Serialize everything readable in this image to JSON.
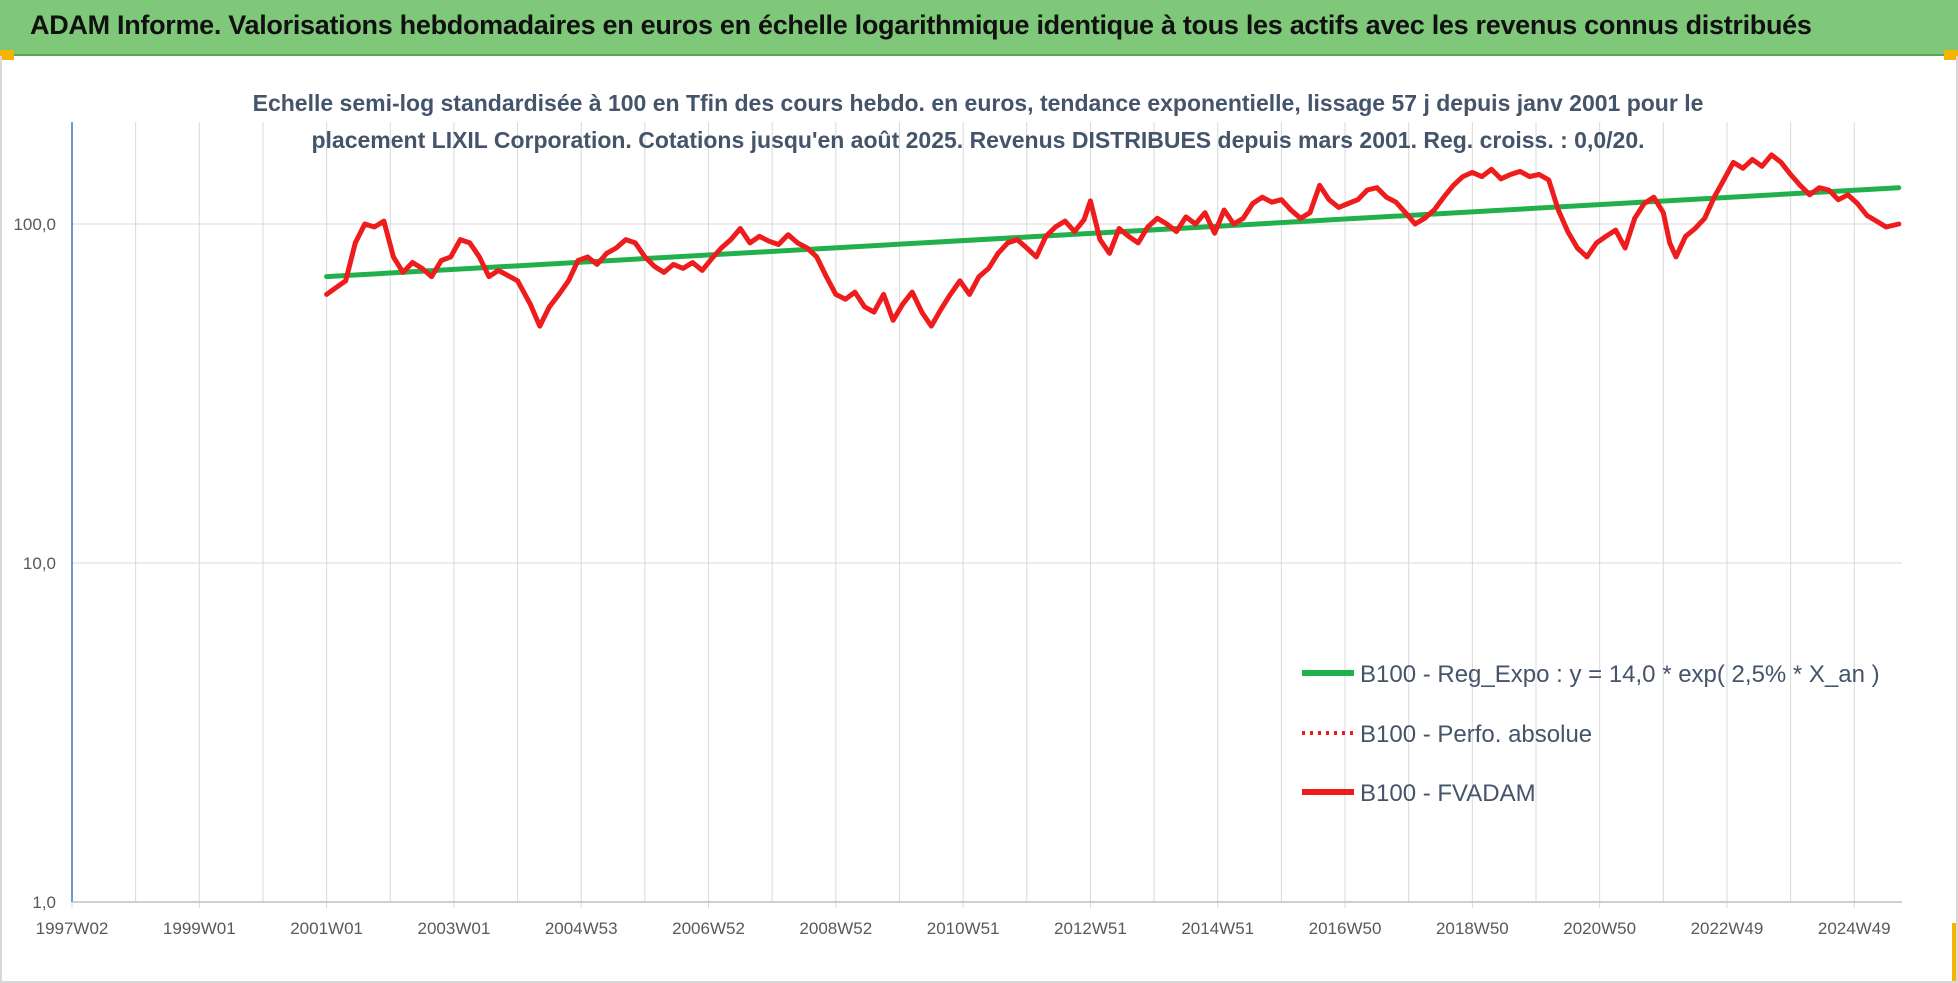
{
  "header": {
    "title": "ADAM Informe. Valorisations hebdomadaires en euros en échelle logarithmique identique à tous les actifs avec les revenus connus distribués"
  },
  "colors": {
    "banner": "#7fc87a",
    "accent": "#f4b400",
    "trend": "#21b04b",
    "fvadam": "#ee1c1c",
    "perfo": "#ee1c1c",
    "grid": "#d9d9d9",
    "axis": "#4472c4"
  },
  "chart_data": {
    "type": "line",
    "title": "",
    "subtitle_lines": [
      "Echelle semi-log standardisée à 100 en Tfin des cours hebdo. en euros, tendance exponentielle, lissage 57 j depuis janv 2001 pour le",
      "placement LIXIL Corporation. Cotations jusqu'en août 2025. Revenus DISTRIBUES depuis mars 2001. Reg. croiss. : 0,0/20."
    ],
    "y_scale": "log",
    "ylim": [
      1,
      200
    ],
    "y_ticks": [
      {
        "value": 1,
        "label": "1,0"
      },
      {
        "value": 10,
        "label": "10,0"
      },
      {
        "value": 100,
        "label": "100,0"
      }
    ],
    "xlim": [
      1997.0,
      2025.75
    ],
    "x_ticks": [
      {
        "value": 1997.0,
        "label": "1997W02"
      },
      {
        "value": 1999.0,
        "label": "1999W01"
      },
      {
        "value": 2001.0,
        "label": "2001W01"
      },
      {
        "value": 2003.0,
        "label": "2003W01"
      },
      {
        "value": 2005.0,
        "label": "2004W53"
      },
      {
        "value": 2007.0,
        "label": "2006W52"
      },
      {
        "value": 2009.0,
        "label": "2008W52"
      },
      {
        "value": 2011.0,
        "label": "2010W51"
      },
      {
        "value": 2013.0,
        "label": "2012W51"
      },
      {
        "value": 2015.0,
        "label": "2014W51"
      },
      {
        "value": 2017.0,
        "label": "2016W50"
      },
      {
        "value": 2019.0,
        "label": "2018W50"
      },
      {
        "value": 2021.0,
        "label": "2020W50"
      },
      {
        "value": 2023.0,
        "label": "2022W49"
      },
      {
        "value": 2025.0,
        "label": "2024W49"
      }
    ],
    "grid": "vertical and horizontal",
    "legend_position": "bottom-right",
    "series": [
      {
        "name": "B100 - Reg_Expo : y = 14,0 * exp( 2,5% *  X_an )",
        "style": "solid",
        "color": "#21b04b",
        "points": [
          [
            2001.0,
            70.0
          ],
          [
            2025.7,
            128.0
          ]
        ]
      },
      {
        "name": "B100 - Perfo. absolue",
        "style": "dotted",
        "color": "#ee1c1c",
        "points": []
      },
      {
        "name": "B100 - FVADAM",
        "style": "solid",
        "color": "#ee1c1c",
        "points": [
          [
            2001.0,
            62
          ],
          [
            2001.15,
            65
          ],
          [
            2001.3,
            68
          ],
          [
            2001.45,
            88
          ],
          [
            2001.6,
            100
          ],
          [
            2001.75,
            98
          ],
          [
            2001.9,
            102
          ],
          [
            2002.05,
            80
          ],
          [
            2002.2,
            72
          ],
          [
            2002.35,
            77
          ],
          [
            2002.5,
            74
          ],
          [
            2002.65,
            70
          ],
          [
            2002.8,
            78
          ],
          [
            2002.95,
            80
          ],
          [
            2003.1,
            90
          ],
          [
            2003.25,
            88
          ],
          [
            2003.4,
            80
          ],
          [
            2003.55,
            70
          ],
          [
            2003.7,
            73
          ],
          [
            2004.0,
            68
          ],
          [
            2004.2,
            58
          ],
          [
            2004.35,
            50
          ],
          [
            2004.5,
            57
          ],
          [
            2004.65,
            62
          ],
          [
            2004.8,
            68
          ],
          [
            2004.95,
            78
          ],
          [
            2005.1,
            80
          ],
          [
            2005.25,
            76
          ],
          [
            2005.4,
            82
          ],
          [
            2005.55,
            85
          ],
          [
            2005.7,
            90
          ],
          [
            2005.85,
            88
          ],
          [
            2006.0,
            80
          ],
          [
            2006.15,
            75
          ],
          [
            2006.3,
            72
          ],
          [
            2006.45,
            76
          ],
          [
            2006.6,
            74
          ],
          [
            2006.75,
            77
          ],
          [
            2006.9,
            73
          ],
          [
            2007.05,
            79
          ],
          [
            2007.2,
            85
          ],
          [
            2007.35,
            90
          ],
          [
            2007.5,
            97
          ],
          [
            2007.65,
            88
          ],
          [
            2007.8,
            92
          ],
          [
            2007.95,
            89
          ],
          [
            2008.1,
            87
          ],
          [
            2008.25,
            93
          ],
          [
            2008.4,
            88
          ],
          [
            2008.55,
            85
          ],
          [
            2008.7,
            80
          ],
          [
            2008.85,
            70
          ],
          [
            2009.0,
            62
          ],
          [
            2009.15,
            60
          ],
          [
            2009.3,
            63
          ],
          [
            2009.45,
            57
          ],
          [
            2009.6,
            55
          ],
          [
            2009.75,
            62
          ],
          [
            2009.9,
            52
          ],
          [
            2010.05,
            58
          ],
          [
            2010.2,
            63
          ],
          [
            2010.35,
            55
          ],
          [
            2010.5,
            50
          ],
          [
            2010.65,
            56
          ],
          [
            2010.8,
            62
          ],
          [
            2010.95,
            68
          ],
          [
            2011.1,
            62
          ],
          [
            2011.25,
            70
          ],
          [
            2011.4,
            74
          ],
          [
            2011.55,
            82
          ],
          [
            2011.7,
            88
          ],
          [
            2011.85,
            90
          ],
          [
            2012.0,
            85
          ],
          [
            2012.15,
            80
          ],
          [
            2012.3,
            92
          ],
          [
            2012.45,
            98
          ],
          [
            2012.6,
            102
          ],
          [
            2012.75,
            95
          ],
          [
            2012.9,
            103
          ],
          [
            2013.0,
            117
          ],
          [
            2013.15,
            90
          ],
          [
            2013.3,
            82
          ],
          [
            2013.45,
            97
          ],
          [
            2013.6,
            92
          ],
          [
            2013.75,
            88
          ],
          [
            2013.9,
            98
          ],
          [
            2014.05,
            104
          ],
          [
            2014.2,
            100
          ],
          [
            2014.35,
            95
          ],
          [
            2014.5,
            105
          ],
          [
            2014.65,
            100
          ],
          [
            2014.8,
            108
          ],
          [
            2014.95,
            94
          ],
          [
            2015.1,
            110
          ],
          [
            2015.25,
            100
          ],
          [
            2015.4,
            104
          ],
          [
            2015.55,
            115
          ],
          [
            2015.7,
            120
          ],
          [
            2015.85,
            116
          ],
          [
            2016.0,
            118
          ],
          [
            2016.15,
            110
          ],
          [
            2016.3,
            104
          ],
          [
            2016.45,
            108
          ],
          [
            2016.6,
            130
          ],
          [
            2016.75,
            118
          ],
          [
            2016.9,
            112
          ],
          [
            2017.05,
            115
          ],
          [
            2017.2,
            118
          ],
          [
            2017.35,
            126
          ],
          [
            2017.5,
            128
          ],
          [
            2017.65,
            120
          ],
          [
            2017.8,
            116
          ],
          [
            2017.95,
            108
          ],
          [
            2018.1,
            100
          ],
          [
            2018.25,
            104
          ],
          [
            2018.4,
            110
          ],
          [
            2018.55,
            120
          ],
          [
            2018.7,
            130
          ],
          [
            2018.85,
            138
          ],
          [
            2019.0,
            142
          ],
          [
            2019.15,
            138
          ],
          [
            2019.3,
            145
          ],
          [
            2019.45,
            136
          ],
          [
            2019.6,
            140
          ],
          [
            2019.75,
            143
          ],
          [
            2019.9,
            138
          ],
          [
            2020.05,
            140
          ],
          [
            2020.2,
            135
          ],
          [
            2020.35,
            110
          ],
          [
            2020.5,
            95
          ],
          [
            2020.65,
            85
          ],
          [
            2020.8,
            80
          ],
          [
            2020.95,
            88
          ],
          [
            2021.1,
            92
          ],
          [
            2021.25,
            96
          ],
          [
            2021.4,
            85
          ],
          [
            2021.55,
            104
          ],
          [
            2021.7,
            115
          ],
          [
            2021.85,
            120
          ],
          [
            2022.0,
            108
          ],
          [
            2022.1,
            88
          ],
          [
            2022.2,
            80
          ],
          [
            2022.35,
            92
          ],
          [
            2022.5,
            97
          ],
          [
            2022.65,
            104
          ],
          [
            2022.8,
            120
          ],
          [
            2022.95,
            135
          ],
          [
            2023.1,
            152
          ],
          [
            2023.25,
            146
          ],
          [
            2023.4,
            155
          ],
          [
            2023.55,
            148
          ],
          [
            2023.7,
            160
          ],
          [
            2023.85,
            152
          ],
          [
            2024.0,
            140
          ],
          [
            2024.15,
            130
          ],
          [
            2024.3,
            122
          ],
          [
            2024.45,
            128
          ],
          [
            2024.6,
            126
          ],
          [
            2024.75,
            118
          ],
          [
            2024.9,
            122
          ],
          [
            2025.05,
            115
          ],
          [
            2025.2,
            106
          ],
          [
            2025.35,
            102
          ],
          [
            2025.5,
            98
          ],
          [
            2025.7,
            100
          ]
        ]
      }
    ]
  }
}
